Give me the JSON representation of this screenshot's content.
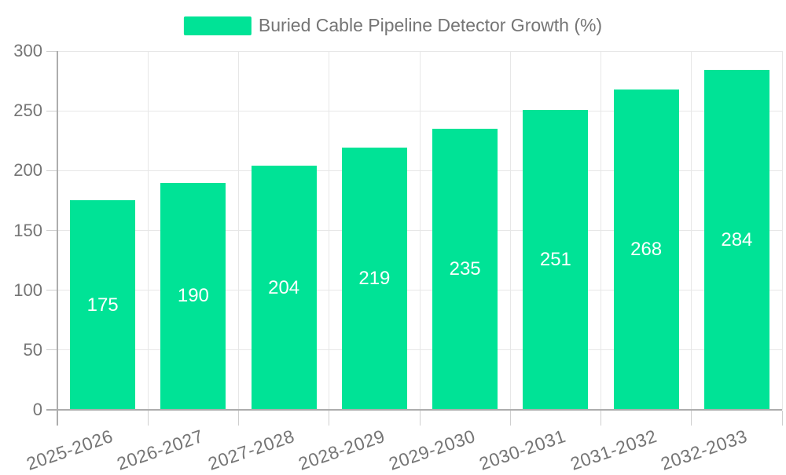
{
  "chart_data": {
    "type": "bar",
    "title": "Buried Cable Pipeline Detector Growth (%)",
    "series_name": "Buried Cable Pipeline Detector Growth (%)",
    "categories": [
      "2025-2026",
      "2026-2027",
      "2027-2028",
      "2028-2029",
      "2029-2030",
      "2030-2031",
      "2031-2032",
      "2032-2033"
    ],
    "values": [
      175,
      190,
      204,
      219,
      235,
      251,
      268,
      284
    ],
    "xlabel": "",
    "ylabel": "",
    "ylim": [
      0,
      300
    ],
    "yticks": [
      0,
      50,
      100,
      150,
      200,
      250,
      300
    ],
    "grid": "horizontal-and-vertical",
    "legend_position": "top-center",
    "data_labels": "inside-center-white",
    "x_label_rotation_deg": -19,
    "colors": {
      "bar": "#00E396",
      "value_label": "#ffffff",
      "axis_text": "#757575",
      "gridline": "#e7e7e7",
      "axis_line": "#adadad",
      "tick_line": "#cfcfcf",
      "background": "#ffffff"
    }
  }
}
